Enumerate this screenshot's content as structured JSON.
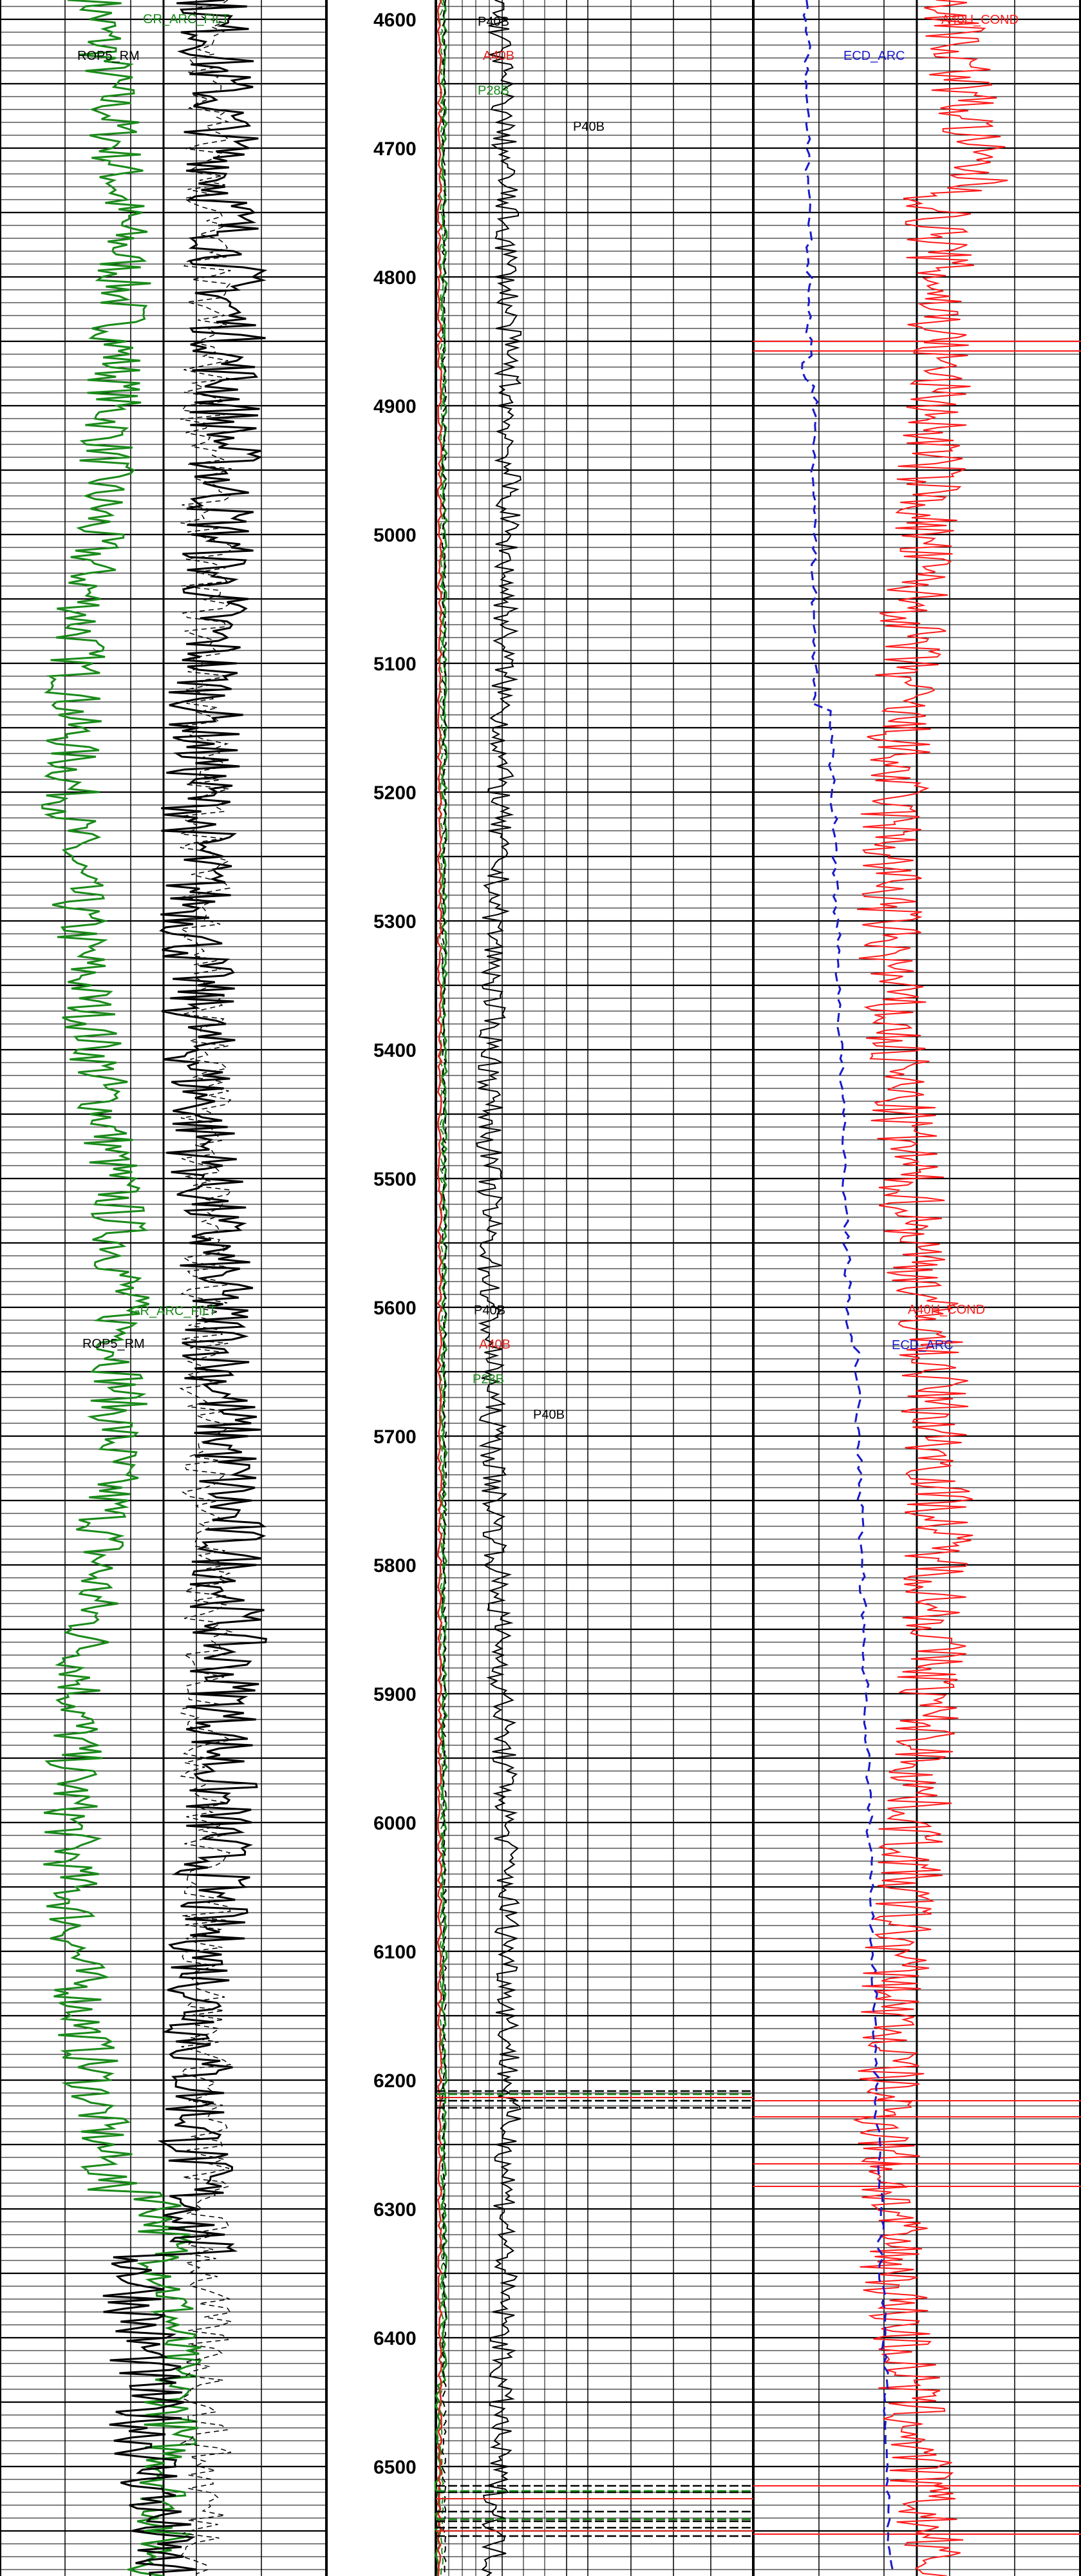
{
  "colors": {
    "gr": "#1a8a1a",
    "rop": "#000000",
    "resistivity_deep": "#000000",
    "resistivity_medium": "#e0201a",
    "resistivity_shallow": "#1a8a1a",
    "conductivity": "#ff1a1a",
    "ecd": "#1a1acc",
    "grid": "#000000"
  },
  "header_labels": {
    "top": {
      "gr": "GR_ARC_FILT",
      "rop": "ROP5_RM",
      "p40b_1": "P40B",
      "a40b": "A40B",
      "p28b": "P28B",
      "p40b_2": "P40B",
      "cond": "A40H_COND",
      "ecd": "ECD_ARC"
    },
    "repeat": {
      "gr": "GR_ARC_FILT",
      "rop": "ROP5_RM",
      "p40b_1": "P40B",
      "a40b": "A40B",
      "p28b": "P28B",
      "p40b_2": "P40B",
      "cond": "A40H_COND",
      "ecd": "ECD_ARC"
    }
  },
  "chart_data": {
    "type": "line",
    "depth_axis": {
      "ticks": [
        "4600",
        "4700",
        "4800",
        "4900",
        "5000",
        "5100",
        "5200",
        "5300",
        "5400",
        "5500",
        "5600",
        "5700",
        "5800",
        "5900",
        "6000",
        "6100",
        "6200",
        "6300",
        "6400",
        "6500"
      ],
      "range": [
        4585,
        6585
      ]
    },
    "tracks": [
      {
        "name": "track-1",
        "series": [
          {
            "name": "GR_ARC_FILT",
            "color_key": "gr"
          },
          {
            "name": "ROP5_RM",
            "color_key": "rop"
          }
        ]
      },
      {
        "name": "track-2",
        "series": [
          {
            "name": "P40B",
            "color_key": "resistivity_deep"
          },
          {
            "name": "A40B",
            "color_key": "resistivity_medium"
          },
          {
            "name": "P28B",
            "color_key": "resistivity_shallow"
          }
        ]
      },
      {
        "name": "track-3",
        "series": [
          {
            "name": "A40H_COND",
            "color_key": "conductivity"
          },
          {
            "name": "ECD_ARC",
            "color_key": "ecd"
          }
        ]
      }
    ],
    "grid": true
  }
}
